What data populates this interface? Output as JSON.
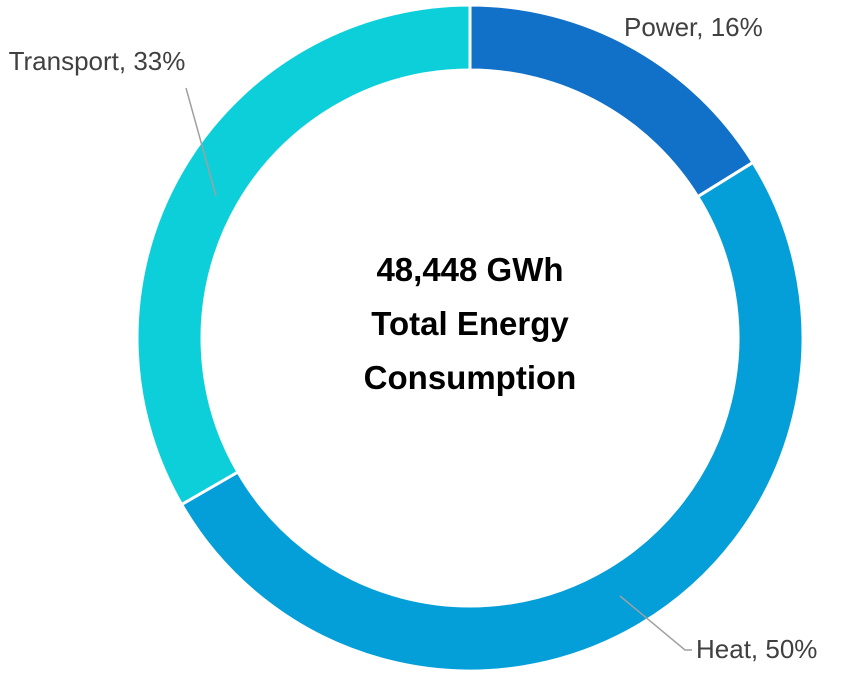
{
  "chart_data": {
    "type": "donut",
    "title": "48,448 GWh Total Energy Consumption",
    "values": [
      16,
      50,
      33
    ],
    "value_labels": [
      "Power, 16%",
      "Heat, 50%",
      "Transport, 33%"
    ],
    "colors": [
      "#1170c8",
      "#049fd9",
      "#0ccfd9"
    ]
  }
}
